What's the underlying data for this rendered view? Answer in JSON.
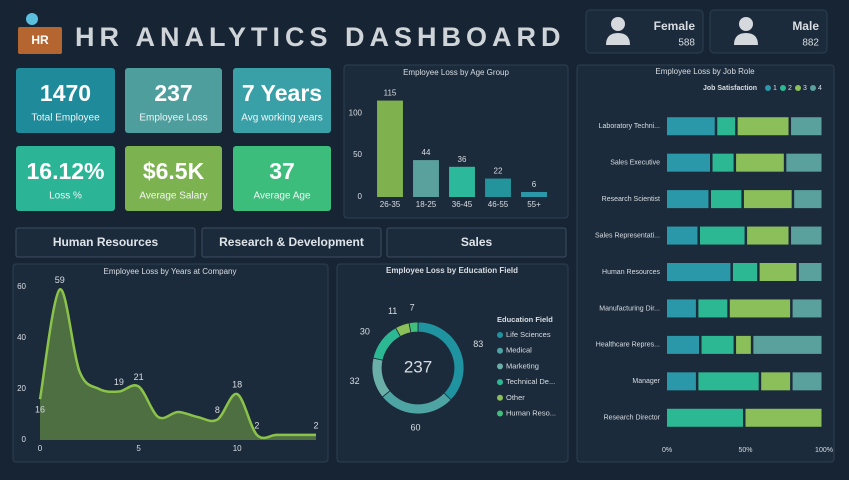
{
  "header": {
    "logo": "HR",
    "title": "HR ANALYTICS DASHBOARD"
  },
  "gender": [
    {
      "label": "Female",
      "value": 588
    },
    {
      "label": "Male",
      "value": 882
    }
  ],
  "kpis": [
    {
      "value": 1470,
      "label": "Total Employee",
      "color": "#1f8a99"
    },
    {
      "value": 237,
      "label": "Employee Loss",
      "color": "#4f9e9e"
    },
    {
      "value": "7 Years",
      "label": "Avg working years",
      "color": "#3aa0a8"
    },
    {
      "value": "16.12%",
      "label": "Loss %",
      "color": "#2bb596"
    },
    {
      "value": "$6.5K",
      "label": "Average Salary",
      "color": "#7cb350"
    },
    {
      "value": 37,
      "label": "Average Age",
      "color": "#3cbd7c"
    }
  ],
  "filters": [
    "Human Resources",
    "Research & Development",
    "Sales"
  ],
  "chart_data": [
    {
      "type": "bar",
      "title": "Employee Loss by Age Group",
      "categories": [
        "26-35",
        "18-25",
        "36-45",
        "46-55",
        "55+"
      ],
      "values": [
        115,
        44,
        36,
        22,
        6
      ],
      "colors": [
        "#7fb24f",
        "#5aa09d",
        "#2cb89a",
        "#23939c",
        "#2a98a8"
      ],
      "ylim": [
        0,
        130
      ],
      "yticks": [
        0,
        50,
        100
      ]
    },
    {
      "type": "area",
      "title": "Employee Loss by Years at Company",
      "x": [
        0,
        1,
        2,
        3,
        4,
        5,
        6,
        7,
        8,
        9,
        10,
        11,
        12,
        13,
        14
      ],
      "values": [
        16,
        59,
        27,
        20,
        19,
        21,
        9,
        11,
        9,
        8,
        18,
        2,
        2,
        2,
        2
      ],
      "value_labels": [
        "16",
        "59",
        null,
        null,
        "19",
        "21",
        null,
        null,
        null,
        "8",
        "18",
        "2",
        null,
        null,
        "2"
      ],
      "color": "#8bc34a",
      "xlim": [
        0,
        14
      ],
      "xticks": [
        0,
        5,
        10
      ],
      "ylim": [
        0,
        60
      ],
      "yticks": [
        0,
        20,
        40,
        60
      ]
    },
    {
      "type": "donut",
      "title": "Employee Loss by Education Field",
      "total": 237,
      "legend_title": "Education Field",
      "categories": [
        "Life Sciences",
        "Medical",
        "Marketing",
        "Technical De...",
        "Other",
        "Human Reso..."
      ],
      "values": [
        83,
        60,
        32,
        30,
        11,
        7
      ],
      "colors": [
        "#1f93a0",
        "#4ea3a3",
        "#6ab0a8",
        "#2db894",
        "#8bbf5a",
        "#3fbf7a"
      ]
    },
    {
      "type": "bar",
      "orientation": "horizontal",
      "stacking": "percent",
      "title": "Employee Loss by Job Role",
      "legend_title": "Job Satisfaction",
      "categories": [
        "Laboratory Techni...",
        "Sales Executive",
        "Research Scientist",
        "Sales Representati...",
        "Human Resources",
        "Manufacturing Dir...",
        "Healthcare Repres...",
        "Manager",
        "Research Director"
      ],
      "series": [
        {
          "name": "1",
          "color": "#2a98a8",
          "values": [
            32,
            29,
            28,
            21,
            42,
            20,
            22,
            20,
            0
          ]
        },
        {
          "name": "2",
          "color": "#2db894",
          "values": [
            13,
            15,
            21,
            30,
            17,
            20,
            22,
            40,
            50
          ]
        },
        {
          "name": "3",
          "color": "#8bbf5a",
          "values": [
            34,
            32,
            32,
            28,
            25,
            40,
            11,
            20,
            50
          ]
        },
        {
          "name": "4",
          "color": "#5aa09d",
          "values": [
            21,
            24,
            19,
            21,
            16,
            20,
            45,
            20,
            0
          ]
        }
      ],
      "xlim": [
        0,
        100
      ],
      "xticks": [
        {
          "value": 0,
          "label": "0%"
        },
        {
          "value": 50,
          "label": "50%"
        },
        {
          "value": 100,
          "label": "100%"
        }
      ]
    }
  ]
}
